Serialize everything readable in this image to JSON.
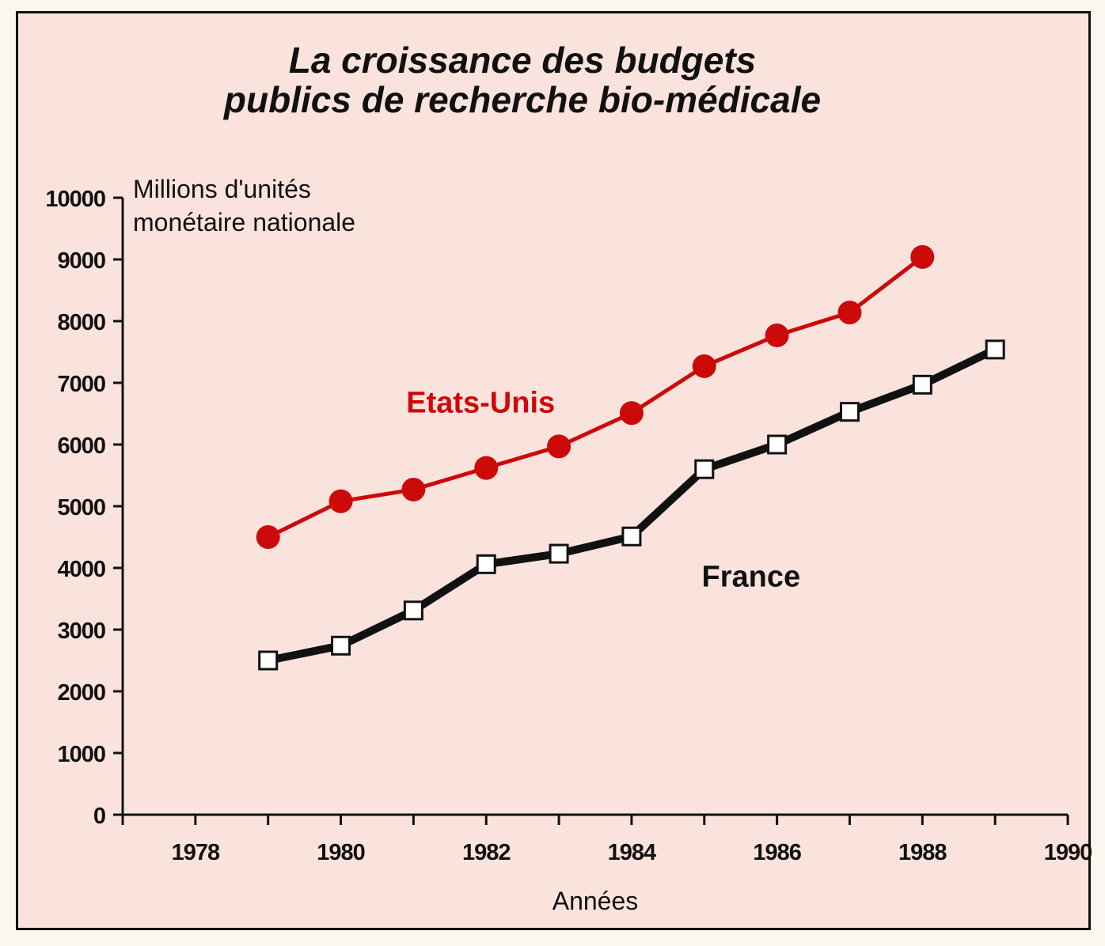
{
  "chart_data": {
    "type": "line",
    "title": "La croissance des budgets publics de recherche bio-médicale",
    "title_lines": [
      "La croissance des budgets",
      "publics de recherche bio-médicale"
    ],
    "ylabel": "Millions d'unités monétaire nationale",
    "ylabel_lines": [
      "Millions d'unités",
      "monétaire nationale"
    ],
    "xlabel": "Années",
    "xlim": [
      1977,
      1990
    ],
    "ylim": [
      0,
      10000
    ],
    "grid": false,
    "legend": "inline labels",
    "x_ticks": [
      1977,
      1978,
      1979,
      1980,
      1981,
      1982,
      1983,
      1984,
      1985,
      1986,
      1987,
      1988,
      1989,
      1990
    ],
    "x_tick_labels": [
      "1978",
      "1980",
      "1982",
      "1984",
      "1986",
      "1988",
      "1990"
    ],
    "x_tick_label_values": [
      1978,
      1980,
      1982,
      1984,
      1986,
      1988,
      1990
    ],
    "y_ticks": [
      0,
      1000,
      2000,
      3000,
      4000,
      5000,
      6000,
      7000,
      8000,
      9000,
      10000
    ],
    "y_tick_labels": [
      "0",
      "1000",
      "2000",
      "3000",
      "4000",
      "5000",
      "6000",
      "7000",
      "8000",
      "9000",
      "10000"
    ],
    "series": [
      {
        "name": "Etats-Unis",
        "label": "Etats-Unis",
        "color": "#cc0a0a",
        "marker": "filled-circle",
        "label_anchor": {
          "x": 1982,
          "y": 6800
        },
        "x": [
          1979,
          1980,
          1981,
          1982,
          1983,
          1984,
          1985,
          1986,
          1987,
          1988
        ],
        "values": [
          4500,
          5080,
          5270,
          5620,
          5970,
          6510,
          7270,
          7770,
          8140,
          9040
        ]
      },
      {
        "name": "France",
        "label": "France",
        "color": "#111111",
        "marker": "open-square",
        "label_anchor": {
          "x": 1985.4,
          "y": 3700
        },
        "x": [
          1979,
          1980,
          1981,
          1982,
          1983,
          1984,
          1985,
          1986,
          1987,
          1988,
          1989
        ],
        "values": [
          2500,
          2740,
          3310,
          4060,
          4230,
          4510,
          5600,
          6000,
          6530,
          6970,
          7540
        ]
      }
    ]
  },
  "colors": {
    "background": "#fbe3dd",
    "frame": "#111111",
    "us_series": "#cc0a0a",
    "france_series": "#111111"
  }
}
